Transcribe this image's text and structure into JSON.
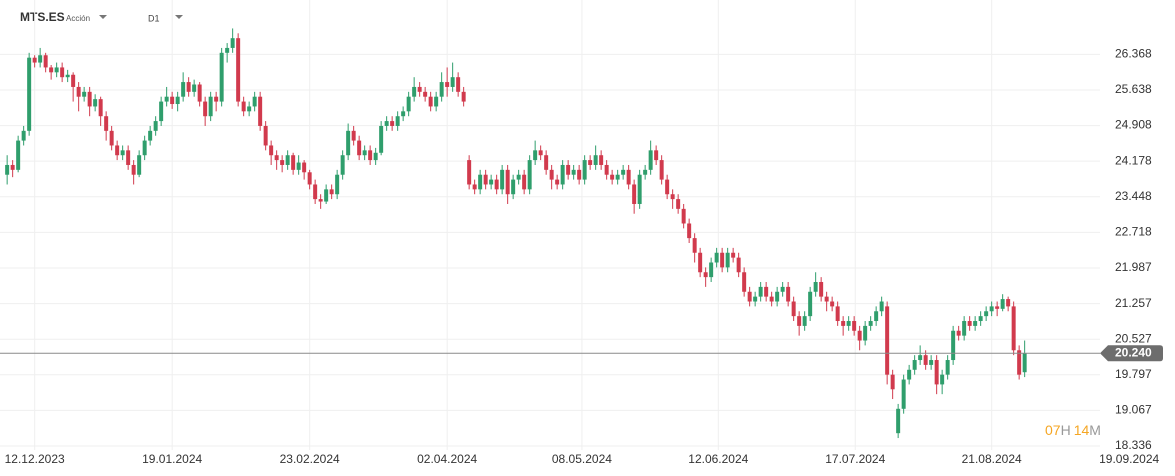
{
  "chart_data": {
    "type": "candlestick",
    "symbol": "MTS.ES",
    "asset_type": "Acción",
    "timeframe": "D1",
    "up_color": "#2f9e6c",
    "down_color": "#d13a4d",
    "grid": true,
    "open": [
      23.9,
      24.1,
      24.0,
      24.6,
      24.8,
      26.3,
      26.2,
      26.35,
      26.1,
      26.0,
      26.1,
      25.9,
      25.95,
      25.7,
      25.5,
      25.6,
      25.3,
      25.45,
      25.1,
      24.8,
      24.5,
      24.3,
      24.4,
      24.1,
      23.9,
      24.3,
      24.6,
      24.8,
      25.0,
      25.4,
      25.5,
      25.35,
      25.5,
      25.8,
      25.6,
      25.75,
      25.4,
      25.1,
      25.5,
      25.4,
      26.4,
      26.5,
      26.7,
      25.4,
      25.2,
      25.3,
      25.5,
      24.9,
      24.5,
      24.3,
      24.2,
      24.1,
      24.3,
      24.0,
      24.15,
      23.95,
      23.7,
      23.4,
      23.35,
      23.6,
      23.5,
      23.9,
      24.3,
      24.8,
      24.6,
      24.3,
      24.4,
      24.2,
      24.35,
      24.9,
      25.0,
      24.9,
      25.1,
      25.2,
      25.5,
      25.7,
      25.6,
      25.5,
      25.3,
      25.5,
      25.8,
      25.7,
      25.9,
      25.6,
      24.2,
      23.7,
      23.6,
      23.9,
      23.7,
      23.8,
      23.6,
      24.0,
      23.5,
      23.8,
      23.9,
      23.6,
      24.2,
      24.4,
      24.3,
      24.0,
      23.8,
      23.7,
      24.1,
      23.9,
      24.0,
      23.8,
      24.2,
      24.1,
      24.3,
      24.1,
      23.9,
      23.8,
      23.9,
      24.0,
      23.7,
      23.3,
      23.9,
      24.0,
      24.4,
      24.2,
      23.8,
      23.5,
      23.4,
      23.2,
      22.9,
      22.6,
      22.3,
      21.9,
      21.8,
      22.1,
      22.3,
      22.0,
      22.3,
      22.2,
      21.9,
      21.5,
      21.3,
      21.4,
      21.6,
      21.4,
      21.3,
      21.5,
      21.6,
      21.3,
      21.0,
      20.8,
      21.0,
      21.5,
      21.7,
      21.4,
      21.3,
      21.2,
      20.9,
      20.8,
      20.9,
      20.7,
      20.5,
      20.8,
      20.9,
      21.1,
      21.2,
      19.8,
      18.6,
      19.1,
      19.7,
      19.9,
      20.1,
      20.2,
      20.0,
      20.1,
      19.6,
      19.8,
      20.1,
      20.7,
      20.6,
      20.9,
      20.8,
      20.9,
      21.0,
      21.1,
      21.2,
      21.15,
      21.35,
      21.2,
      20.3,
      19.85
    ],
    "high": [
      24.3,
      24.2,
      24.7,
      24.9,
      26.4,
      26.35,
      26.5,
      26.4,
      26.15,
      26.2,
      26.2,
      26.05,
      26.0,
      25.8,
      25.7,
      25.7,
      25.55,
      25.5,
      25.2,
      24.9,
      24.6,
      24.5,
      24.5,
      24.2,
      24.4,
      24.7,
      24.9,
      25.1,
      25.5,
      25.7,
      25.6,
      25.6,
      26.0,
      25.9,
      25.85,
      25.8,
      25.5,
      25.6,
      25.6,
      26.5,
      26.6,
      26.9,
      26.8,
      25.5,
      25.4,
      25.6,
      25.6,
      25.0,
      24.6,
      24.4,
      24.3,
      24.4,
      24.35,
      24.3,
      24.2,
      24.0,
      23.8,
      23.5,
      23.7,
      23.7,
      24.0,
      24.4,
      24.95,
      24.9,
      24.7,
      24.5,
      24.5,
      24.45,
      25.0,
      25.1,
      25.1,
      25.2,
      25.3,
      25.6,
      25.9,
      25.8,
      25.7,
      25.6,
      25.6,
      26.0,
      26.1,
      26.2,
      26.0,
      25.7,
      24.3,
      23.8,
      24.0,
      24.0,
      23.9,
      23.9,
      24.1,
      24.1,
      23.9,
      24.0,
      24.0,
      24.3,
      24.6,
      24.5,
      24.4,
      24.1,
      23.9,
      24.2,
      24.2,
      24.1,
      24.1,
      24.3,
      24.3,
      24.5,
      24.4,
      24.2,
      24.0,
      24.0,
      24.1,
      24.1,
      23.8,
      24.0,
      24.1,
      24.6,
      24.5,
      24.3,
      23.9,
      23.6,
      23.5,
      23.3,
      23.0,
      22.7,
      22.4,
      22.0,
      22.2,
      22.4,
      22.4,
      22.4,
      22.4,
      22.3,
      22.0,
      21.6,
      21.5,
      21.7,
      21.7,
      21.5,
      21.6,
      21.7,
      21.7,
      21.4,
      21.1,
      21.1,
      21.6,
      21.9,
      21.8,
      21.5,
      21.4,
      21.3,
      21.0,
      21.0,
      21.0,
      20.8,
      20.9,
      21.0,
      21.2,
      21.4,
      21.3,
      19.9,
      19.2,
      19.8,
      20.0,
      20.2,
      20.4,
      20.3,
      20.2,
      20.2,
      19.9,
      20.2,
      20.8,
      20.8,
      21.0,
      21.0,
      21.0,
      21.1,
      21.2,
      21.3,
      21.3,
      21.45,
      21.4,
      21.3,
      20.4,
      20.5
    ],
    "low": [
      23.7,
      23.85,
      23.95,
      24.5,
      24.7,
      26.1,
      26.1,
      26.0,
      25.85,
      25.9,
      25.8,
      25.8,
      25.4,
      25.2,
      25.4,
      25.1,
      25.2,
      24.9,
      24.6,
      24.4,
      24.2,
      24.2,
      24.0,
      23.7,
      23.85,
      24.2,
      24.5,
      24.7,
      24.9,
      25.3,
      25.25,
      25.2,
      25.4,
      25.5,
      25.5,
      25.3,
      24.9,
      25.0,
      25.2,
      25.3,
      26.2,
      26.4,
      25.3,
      25.1,
      25.1,
      25.2,
      24.8,
      24.4,
      24.1,
      24.0,
      23.95,
      24.0,
      23.9,
      23.9,
      23.8,
      23.6,
      23.3,
      23.2,
      23.3,
      23.4,
      23.4,
      23.8,
      24.2,
      24.5,
      24.2,
      24.2,
      24.1,
      24.1,
      24.3,
      24.8,
      24.8,
      24.8,
      25.0,
      25.1,
      25.4,
      25.5,
      25.4,
      25.2,
      25.2,
      25.4,
      25.5,
      25.6,
      25.5,
      25.3,
      23.6,
      23.5,
      23.5,
      23.6,
      23.6,
      23.5,
      23.5,
      23.3,
      23.4,
      23.7,
      23.5,
      23.5,
      24.1,
      24.2,
      23.9,
      23.6,
      23.6,
      23.6,
      23.8,
      23.8,
      23.7,
      23.7,
      24.0,
      24.0,
      24.0,
      23.8,
      23.7,
      23.7,
      23.8,
      23.6,
      23.1,
      23.2,
      23.8,
      23.9,
      24.1,
      23.7,
      23.4,
      23.2,
      23.1,
      22.8,
      22.5,
      22.1,
      21.8,
      21.6,
      21.7,
      22.0,
      21.9,
      21.9,
      22.1,
      21.8,
      21.4,
      21.2,
      21.2,
      21.3,
      21.3,
      21.2,
      21.2,
      21.4,
      21.2,
      20.9,
      20.6,
      20.7,
      20.9,
      21.4,
      21.3,
      21.1,
      21.1,
      20.8,
      20.6,
      20.7,
      20.6,
      20.3,
      20.4,
      20.7,
      20.8,
      21.0,
      19.6,
      19.3,
      18.5,
      19.0,
      19.6,
      19.8,
      20.0,
      19.9,
      19.9,
      19.4,
      19.4,
      19.7,
      20.0,
      20.5,
      20.5,
      20.7,
      20.7,
      20.8,
      20.9,
      21.0,
      21.0,
      21.1,
      21.1,
      20.2,
      19.7,
      19.75
    ],
    "close": [
      24.1,
      24.0,
      24.6,
      24.8,
      26.3,
      26.2,
      26.35,
      26.1,
      26.0,
      26.1,
      25.9,
      25.95,
      25.7,
      25.5,
      25.6,
      25.3,
      25.45,
      25.1,
      24.8,
      24.5,
      24.3,
      24.4,
      24.1,
      23.9,
      24.3,
      24.6,
      24.8,
      25.0,
      25.4,
      25.5,
      25.35,
      25.5,
      25.8,
      25.6,
      25.75,
      25.4,
      25.1,
      25.5,
      25.4,
      26.4,
      26.5,
      26.7,
      25.4,
      25.2,
      25.3,
      25.5,
      24.9,
      24.5,
      24.3,
      24.2,
      24.1,
      24.3,
      24.0,
      24.15,
      23.95,
      23.7,
      23.4,
      23.35,
      23.6,
      23.5,
      23.9,
      24.3,
      24.8,
      24.6,
      24.3,
      24.4,
      24.2,
      24.35,
      24.9,
      25.0,
      24.9,
      25.1,
      25.2,
      25.5,
      25.7,
      25.6,
      25.5,
      25.3,
      25.5,
      25.8,
      25.7,
      25.9,
      25.6,
      25.4,
      23.7,
      23.6,
      23.9,
      23.7,
      23.8,
      23.6,
      24.0,
      23.5,
      23.8,
      23.9,
      23.6,
      24.2,
      24.4,
      24.3,
      24.0,
      23.8,
      23.7,
      24.1,
      23.9,
      24.0,
      23.8,
      24.2,
      24.1,
      24.3,
      24.1,
      23.9,
      23.8,
      23.9,
      24.0,
      23.7,
      23.3,
      23.9,
      24.0,
      24.4,
      24.2,
      23.8,
      23.5,
      23.4,
      23.2,
      22.9,
      22.6,
      22.3,
      21.9,
      21.8,
      22.1,
      22.3,
      22.0,
      22.3,
      22.2,
      21.9,
      21.5,
      21.3,
      21.4,
      21.6,
      21.4,
      21.3,
      21.5,
      21.6,
      21.3,
      21.0,
      20.8,
      21.0,
      21.5,
      21.7,
      21.4,
      21.3,
      21.2,
      20.9,
      20.8,
      20.9,
      20.7,
      20.5,
      20.8,
      20.9,
      21.1,
      21.3,
      19.8,
      19.5,
      19.1,
      19.7,
      19.9,
      20.1,
      20.2,
      20.0,
      20.1,
      19.6,
      19.8,
      20.1,
      20.7,
      20.6,
      20.9,
      20.8,
      20.9,
      21.0,
      21.1,
      21.2,
      21.15,
      21.35,
      21.2,
      20.3,
      19.8,
      20.24
    ],
    "xlim": [
      -1.3,
      198.7
    ],
    "xticks": [
      {
        "value": 5,
        "label": "12.12.2023"
      },
      {
        "value": 30,
        "label": "19.01.2024"
      },
      {
        "value": 55,
        "label": "23.02.2024"
      },
      {
        "value": 80,
        "label": "02.04.2024"
      },
      {
        "value": 104.5,
        "label": "08.05.2024"
      },
      {
        "value": 129.3,
        "label": "12.06.2024"
      },
      {
        "value": 154.2,
        "label": "17.07.2024"
      },
      {
        "value": 179,
        "label": "21.08.2024"
      },
      {
        "value": 204,
        "label": "19.09.2024"
      }
    ],
    "ylim": [
      18.255,
      27.483
    ],
    "yticks": [
      18.336,
      19.067,
      19.797,
      20.527,
      21.257,
      21.987,
      22.718,
      23.448,
      24.178,
      24.908,
      25.638,
      26.368
    ],
    "last_price": {
      "value": 20.24,
      "label": "20.240"
    }
  },
  "timer": {
    "hours": "07",
    "hours_unit": "H",
    "minutes": "14",
    "minutes_unit": "M"
  }
}
